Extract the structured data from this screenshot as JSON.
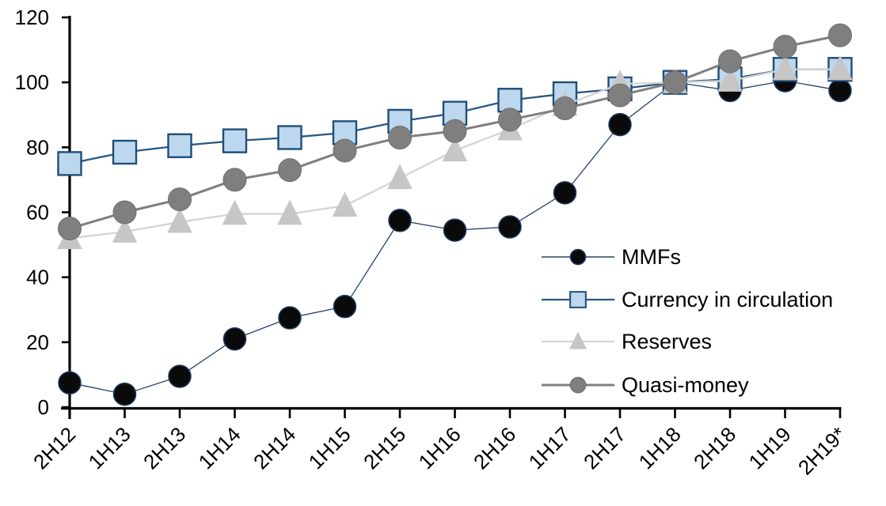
{
  "chart_data": {
    "type": "line",
    "title": "",
    "xlabel": "",
    "ylabel": "",
    "ylim": [
      0,
      120
    ],
    "yticks": [
      0,
      20,
      40,
      60,
      80,
      100,
      120
    ],
    "grid": false,
    "legend_position": "inside-right",
    "axis_color": "#000000",
    "categories": [
      "2H12",
      "1H13",
      "2H13",
      "1H14",
      "2H14",
      "1H15",
      "2H15",
      "1H16",
      "2H16",
      "1H17",
      "2H17",
      "1H18",
      "2H18",
      "1H19",
      "2H19*"
    ],
    "series": [
      {
        "name": "MMFs",
        "marker": "circle",
        "marker_fill": "#0a0a0a",
        "marker_stroke": "#1F3864",
        "marker_stroke_width": 1.5,
        "marker_size": 28,
        "line_color": "#24426E",
        "line_width": 1.3,
        "values": [
          7.5,
          4,
          9.5,
          21,
          27.5,
          31,
          57.5,
          54.5,
          55.5,
          66,
          87,
          100,
          97.5,
          100.5,
          97.5
        ]
      },
      {
        "name": "Currency in circulation",
        "marker": "square",
        "marker_fill": "#BDD7EE",
        "marker_stroke": "#1F4E79",
        "marker_stroke_width": 2.4,
        "marker_size": 29,
        "line_color": "#2A5783",
        "line_width": 2.3,
        "values": [
          75,
          78.5,
          80.5,
          82,
          83,
          84.5,
          88,
          90.5,
          94.5,
          96.5,
          98,
          100,
          101,
          104,
          104
        ]
      },
      {
        "name": "Reserves",
        "marker": "triangle",
        "marker_fill": "#C6C6C6",
        "marker_stroke": "#C6C6C6",
        "marker_stroke_width": 1,
        "marker_size": 30,
        "line_color": "#D4D4D4",
        "line_width": 2.3,
        "values": [
          52,
          54,
          57,
          59.5,
          59.5,
          62,
          70.5,
          79,
          85.5,
          93,
          99.5,
          100,
          100.5,
          104,
          104
        ]
      },
      {
        "name": "Quasi-money",
        "marker": "circle",
        "marker_fill": "#7F7F7F",
        "marker_stroke": "#6E6E6E",
        "marker_stroke_width": 1,
        "marker_size": 29,
        "line_color": "#7F7F7F",
        "line_width": 3,
        "values": [
          55,
          60,
          64,
          70,
          73,
          79,
          83,
          85,
          88.5,
          92,
          96,
          100,
          106.5,
          111,
          114.5
        ]
      }
    ]
  }
}
